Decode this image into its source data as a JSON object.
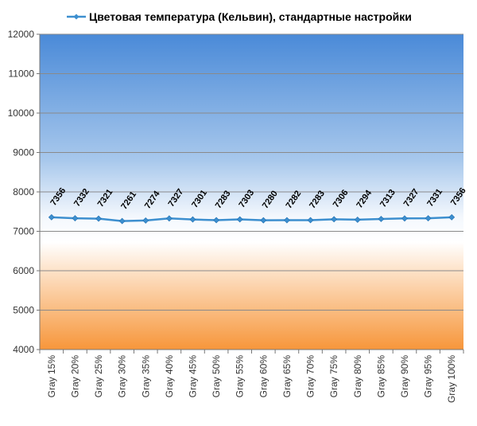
{
  "chart_data": {
    "type": "line",
    "title": "",
    "xlabel": "",
    "ylabel": "",
    "categories": [
      "Gray 15%",
      "Gray 20%",
      "Gray 25%",
      "Gray 30%",
      "Gray 35%",
      "Gray 40%",
      "Gray 45%",
      "Gray 50%",
      "Gray 55%",
      "Gray 60%",
      "Gray 65%",
      "Gray 70%",
      "Gray 75%",
      "Gray 80%",
      "Gray 85%",
      "Gray 90%",
      "Gray 95%",
      "Gray 100%"
    ],
    "series": [
      {
        "name": "Цветовая температура (Кельвин), стандартные настройки",
        "values": [
          7356,
          7332,
          7321,
          7261,
          7274,
          7327,
          7301,
          7283,
          7303,
          7280,
          7282,
          7283,
          7306,
          7294,
          7313,
          7327,
          7331,
          7356
        ],
        "color": "#3d8fcf"
      }
    ],
    "ylim": [
      4000,
      12000
    ],
    "yticks": [
      4000,
      5000,
      6000,
      7000,
      8000,
      9000,
      10000,
      11000,
      12000
    ],
    "grid": true,
    "legend_position": "top",
    "data_labels": true,
    "background": "gradient-blue-white-orange"
  }
}
